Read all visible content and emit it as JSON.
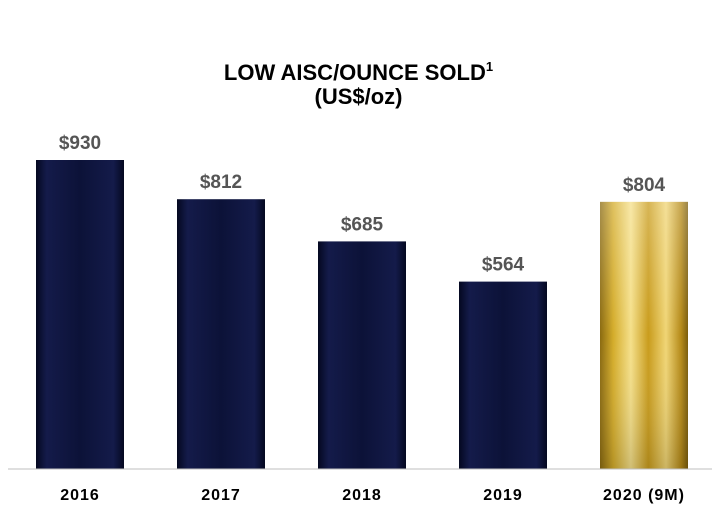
{
  "chart_data": {
    "type": "bar",
    "title": "LOW AISC/OUNCE SOLD",
    "title_superscript": "1",
    "subtitle": "(US$/oz)",
    "categories": [
      "2016",
      "2017",
      "2018",
      "2019",
      "2020 (9M)"
    ],
    "values": [
      930,
      812,
      685,
      564,
      804
    ],
    "value_labels": [
      "$930",
      "$812",
      "$685",
      "$564",
      "$804"
    ],
    "ylim": [
      0,
      930
    ],
    "grid": false,
    "legend": "none",
    "bar_colors": [
      "#0c1238",
      "#0c1238",
      "#0c1238",
      "#0c1238",
      "#d9b42c"
    ]
  }
}
